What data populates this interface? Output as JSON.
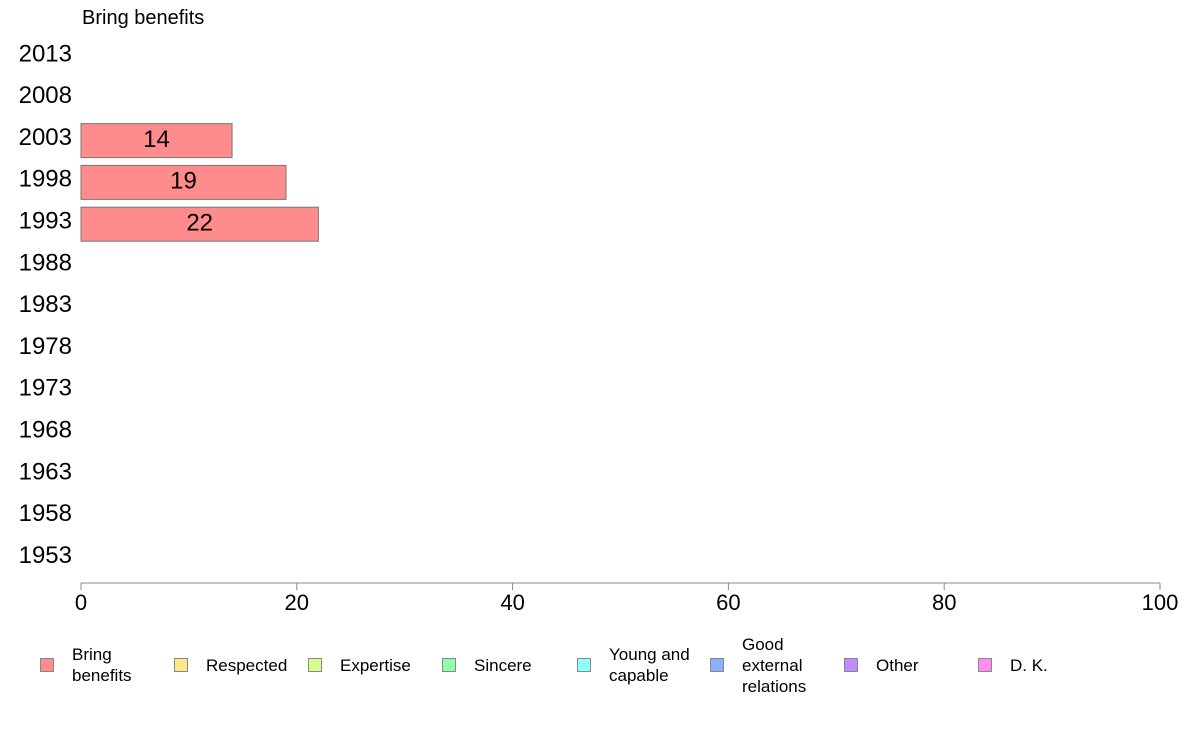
{
  "panel_title": "Bring benefits",
  "chart_data": {
    "type": "bar",
    "orientation": "horizontal",
    "title": "Bring benefits",
    "categories": [
      "2013",
      "2008",
      "2003",
      "1998",
      "1993",
      "1988",
      "1983",
      "1978",
      "1973",
      "1968",
      "1963",
      "1958",
      "1953"
    ],
    "series": [
      {
        "name": "Bring benefits",
        "values": [
          null,
          null,
          14,
          19,
          22,
          null,
          null,
          null,
          null,
          null,
          null,
          null,
          null
        ]
      }
    ],
    "data_labels": [
      "",
      "",
      "14",
      "19",
      "22",
      "",
      "",
      "",
      "",
      "",
      "",
      "",
      ""
    ],
    "xlim": [
      0,
      100
    ],
    "xticks": [
      "0",
      "20",
      "40",
      "60",
      "80",
      "100"
    ],
    "xlabel": "",
    "ylabel": "",
    "grid": false,
    "legend_placement": "bottom",
    "bar_color": "#ff8c8c"
  },
  "legend": [
    {
      "label": "Bring benefits",
      "color": "#ff8c8c"
    },
    {
      "label": "Respected",
      "color": "#ffe88c"
    },
    {
      "label": "Expertise",
      "color": "#d4ff8c"
    },
    {
      "label": "Sincere",
      "color": "#8cffa8"
    },
    {
      "label": "Young and capable",
      "color": "#8cffff"
    },
    {
      "label": "Good external relations",
      "color": "#8cb0ff"
    },
    {
      "label": "Other",
      "color": "#c08cff"
    },
    {
      "label": "D. K.",
      "color": "#ff8cf0"
    }
  ]
}
